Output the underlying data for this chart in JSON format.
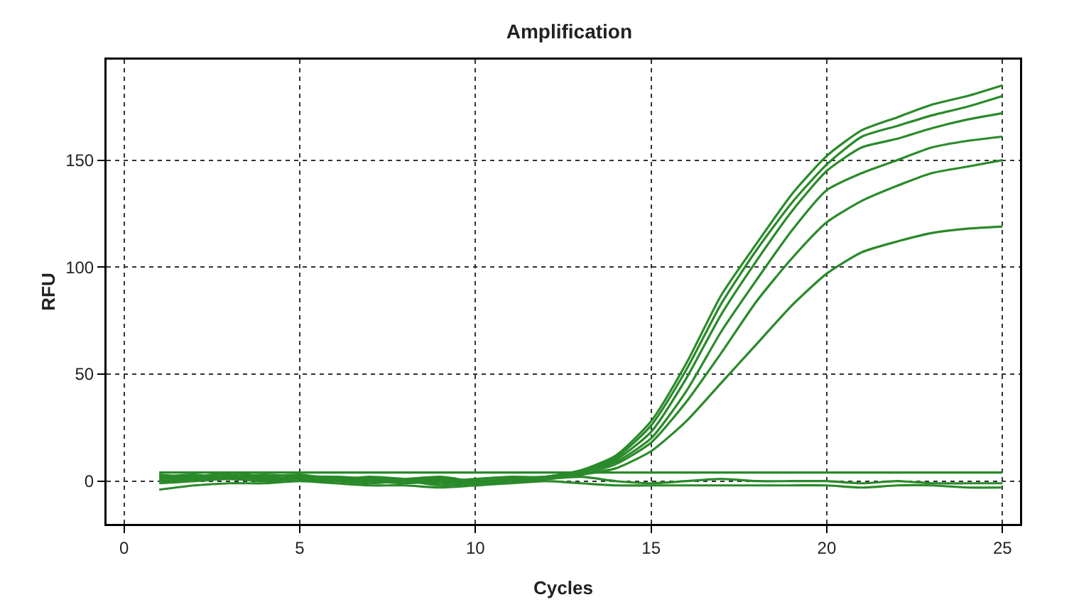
{
  "chart_data": {
    "type": "line",
    "title": "Amplification",
    "xlabel": "Cycles",
    "ylabel": "RFU",
    "x": [
      1,
      2,
      3,
      4,
      5,
      6,
      7,
      8,
      9,
      10,
      11,
      12,
      13,
      14,
      15,
      16,
      17,
      18,
      19,
      20,
      21,
      22,
      23,
      24,
      25
    ],
    "series": [
      {
        "color": "#2a8a2a",
        "values": [
          3,
          2,
          4,
          2,
          1,
          2,
          1,
          0,
          1,
          0,
          1,
          2,
          5,
          12,
          28,
          55,
          87,
          111,
          134,
          152,
          164,
          170,
          176,
          180,
          185
        ]
      },
      {
        "color": "#2a8a2a",
        "values": [
          2,
          3,
          1,
          2,
          3,
          1,
          2,
          1,
          0,
          1,
          2,
          2,
          5,
          11,
          26,
          52,
          83,
          108,
          130,
          148,
          161,
          166,
          171,
          175,
          180
        ]
      },
      {
        "color": "#2a8a2a",
        "values": [
          1,
          2,
          3,
          1,
          2,
          2,
          1,
          1,
          2,
          0,
          1,
          1,
          4,
          10,
          23,
          48,
          78,
          103,
          126,
          145,
          156,
          160,
          165,
          169,
          172
        ]
      },
      {
        "color": "#2a8a2a",
        "values": [
          2,
          1,
          2,
          3,
          2,
          1,
          0,
          1,
          1,
          -1,
          1,
          2,
          4,
          9,
          20,
          42,
          70,
          94,
          117,
          136,
          144,
          150,
          156,
          159,
          161
        ]
      },
      {
        "color": "#2a8a2a",
        "values": [
          0,
          1,
          2,
          1,
          1,
          0,
          1,
          0,
          -1,
          0,
          1,
          1,
          3,
          8,
          18,
          37,
          60,
          84,
          104,
          121,
          131,
          138,
          144,
          147,
          150
        ]
      },
      {
        "color": "#2a8a2a",
        "values": [
          -1,
          0,
          1,
          0,
          1,
          0,
          0,
          -1,
          0,
          -2,
          0,
          1,
          3,
          6,
          14,
          28,
          46,
          64,
          82,
          97,
          107,
          112,
          116,
          118,
          119
        ]
      },
      {
        "color": "#2a8a2a",
        "values": [
          4,
          4,
          4,
          4,
          4,
          4,
          4,
          4,
          4,
          4,
          4,
          4,
          4,
          4,
          4,
          4,
          4,
          4,
          4,
          4,
          4,
          4,
          4,
          4,
          4
        ]
      },
      {
        "color": "#2a8a2a",
        "values": [
          0,
          1,
          2,
          0,
          1,
          0,
          -1,
          0,
          -2,
          -1,
          0,
          1,
          2,
          0,
          -1,
          0,
          1,
          0,
          0,
          0,
          -1,
          0,
          -1,
          -1,
          -1
        ]
      },
      {
        "color": "#2a8a2a",
        "values": [
          -4,
          -2,
          -1,
          -1,
          0,
          -1,
          -2,
          -2,
          -3,
          -2,
          -1,
          0,
          -1,
          -2,
          -2,
          -2,
          -2,
          -2,
          -2,
          -2,
          -3,
          -2,
          -2,
          -3,
          -3
        ]
      }
    ],
    "xlim": [
      -0.5,
      25.5
    ],
    "ylim": [
      -20,
      197
    ],
    "xticks": [
      0,
      5,
      10,
      15,
      20,
      25
    ],
    "yticks": [
      0,
      50,
      100,
      150
    ],
    "grid": true,
    "marker": "none",
    "line_style": "solid"
  }
}
